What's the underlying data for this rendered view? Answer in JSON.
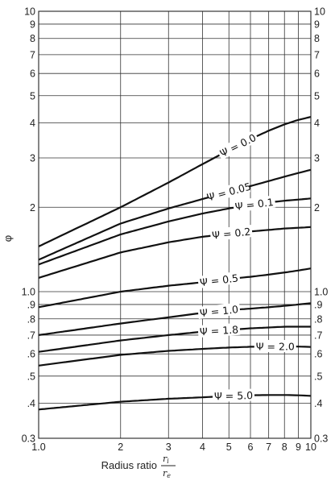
{
  "chart_data": {
    "type": "line",
    "xscale": "log",
    "yscale": "log",
    "xlim": [
      1,
      10
    ],
    "ylim": [
      0.3,
      10
    ],
    "grid": true,
    "ylabel": "φ",
    "xlabel_prefix": "Radius ratio",
    "xlabel_num": "r",
    "xlabel_num_sub": "i",
    "xlabel_den": "r",
    "xlabel_den_sub": "e",
    "x_ticks": [
      1,
      2,
      3,
      4,
      5,
      6,
      7,
      8,
      9,
      10
    ],
    "x_tick_labels": [
      "1.0",
      "2",
      "3",
      "4",
      "5",
      "6",
      "7",
      "8",
      "9",
      "10"
    ],
    "y_ticks": [
      0.3,
      0.4,
      0.5,
      0.6,
      0.7,
      0.8,
      0.9,
      1.0,
      2,
      3,
      4,
      5,
      6,
      7,
      8,
      9,
      10
    ],
    "y_tick_labels_left": [
      "0.3",
      ".4",
      ".5",
      ".6",
      ".7",
      ".8",
      ".9",
      "1.0",
      "2",
      "3",
      "4",
      "5",
      "6",
      "7",
      "8",
      "9",
      "10"
    ],
    "y_tick_labels_right": [
      "0.3",
      ".4",
      ".5",
      ".6",
      ".7",
      ".8",
      ".9",
      "1.0",
      "2",
      "3",
      "4",
      "5",
      "6",
      "7",
      "8",
      "9",
      "10"
    ],
    "series": [
      {
        "name": "Ψ = 0.0",
        "label_x": 5.4,
        "x": [
          1,
          2,
          3,
          4,
          5,
          6,
          7,
          8,
          9,
          10
        ],
        "y": [
          1.45,
          2.0,
          2.45,
          2.85,
          3.2,
          3.5,
          3.75,
          3.95,
          4.1,
          4.2
        ]
      },
      {
        "name": "Ψ = 0.05",
        "label_x": 5.0,
        "x": [
          1,
          2,
          3,
          4,
          5,
          6,
          7,
          8,
          9,
          10
        ],
        "y": [
          1.3,
          1.75,
          1.98,
          2.14,
          2.27,
          2.38,
          2.48,
          2.57,
          2.65,
          2.72
        ]
      },
      {
        "name": "Ψ = 0.1",
        "label_x": 6.2,
        "x": [
          1,
          2,
          3,
          4,
          5,
          6,
          7,
          8,
          9,
          10
        ],
        "y": [
          1.25,
          1.6,
          1.78,
          1.9,
          1.98,
          2.04,
          2.08,
          2.11,
          2.13,
          2.15
        ]
      },
      {
        "name": "Ψ = 0.2",
        "label_x": 5.1,
        "x": [
          1,
          2,
          3,
          4,
          5,
          6,
          7,
          8,
          9,
          10
        ],
        "y": [
          1.12,
          1.38,
          1.5,
          1.57,
          1.61,
          1.64,
          1.66,
          1.68,
          1.69,
          1.7
        ]
      },
      {
        "name": "Ψ = 0.5",
        "label_x": 4.6,
        "x": [
          1,
          2,
          3,
          4,
          5,
          6,
          7,
          8,
          9,
          10
        ],
        "y": [
          0.88,
          1.0,
          1.05,
          1.08,
          1.11,
          1.13,
          1.15,
          1.17,
          1.19,
          1.21
        ]
      },
      {
        "name": "Ψ = 1.0",
        "label_x": 4.6,
        "x": [
          1,
          2,
          3,
          4,
          5,
          6,
          7,
          8,
          9,
          10
        ],
        "y": [
          0.7,
          0.77,
          0.81,
          0.84,
          0.86,
          0.87,
          0.88,
          0.89,
          0.9,
          0.91
        ]
      },
      {
        "name": "Ψ = 1.8",
        "label_x": 4.6,
        "x": [
          1,
          2,
          3,
          4,
          5,
          6,
          7,
          8,
          9,
          10
        ],
        "y": [
          0.61,
          0.67,
          0.7,
          0.72,
          0.73,
          0.74,
          0.745,
          0.75,
          0.75,
          0.75
        ]
      },
      {
        "name": "Ψ = 2.0",
        "label_x": 7.4,
        "x": [
          1,
          2,
          3,
          4,
          5,
          6,
          7,
          8,
          9,
          10
        ],
        "y": [
          0.545,
          0.595,
          0.615,
          0.625,
          0.632,
          0.636,
          0.638,
          0.638,
          0.637,
          0.635
        ]
      },
      {
        "name": "Ψ = 5.0",
        "label_x": 5.2,
        "x": [
          1,
          2,
          3,
          4,
          5,
          6,
          7,
          8,
          9,
          10
        ],
        "y": [
          0.38,
          0.405,
          0.415,
          0.42,
          0.425,
          0.427,
          0.428,
          0.428,
          0.427,
          0.425
        ]
      }
    ]
  }
}
